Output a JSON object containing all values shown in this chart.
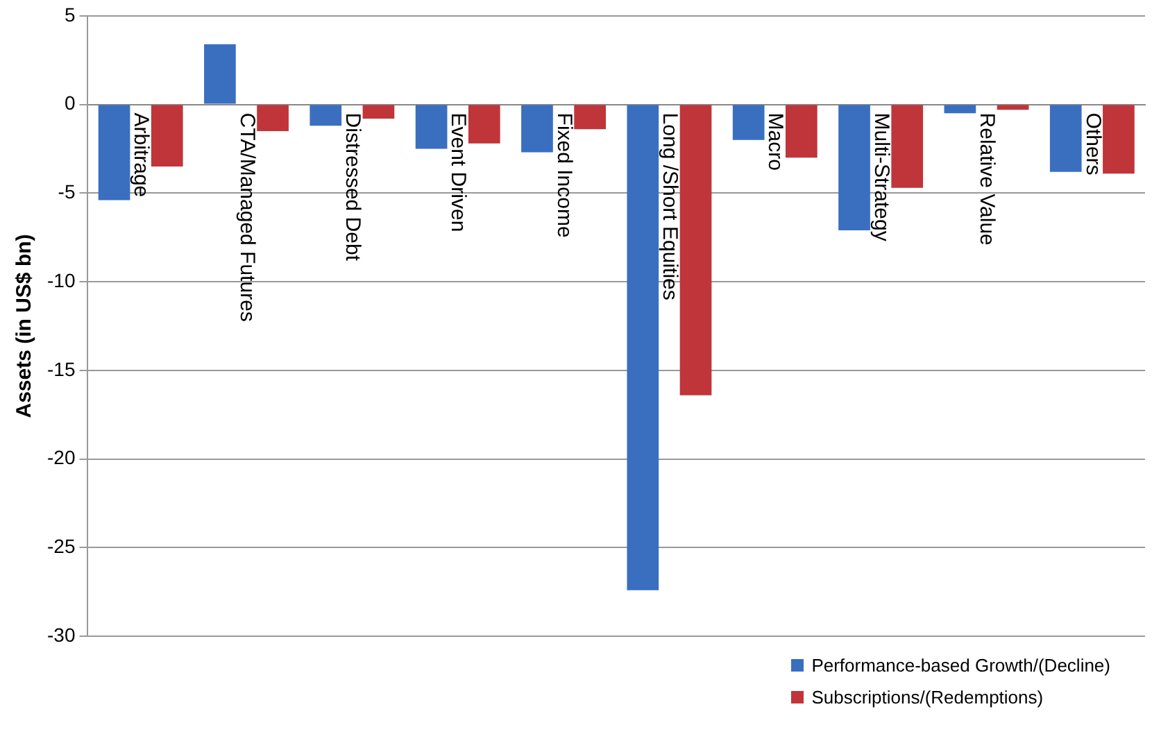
{
  "chart_data": {
    "type": "bar",
    "ylabel": "Assets (in US$ bn)",
    "categories": [
      "Arbitrage",
      "CTA/Managed Futures",
      "Distressed Debt",
      "Event Driven",
      "Fixed Income",
      "Long /Short Equities",
      "Macro",
      "Multi-Strategy",
      "Relative Value",
      "Others"
    ],
    "series": [
      {
        "name": "Performance-based Growth/(Decline)",
        "color": "#3a6fc0",
        "values": [
          -5.4,
          3.4,
          -1.2,
          -2.5,
          -2.7,
          -27.4,
          -2.0,
          -7.1,
          -0.5,
          -3.8
        ]
      },
      {
        "name": "Subscriptions/(Redemptions)",
        "color": "#c0353a",
        "values": [
          -3.5,
          -1.5,
          -0.8,
          -2.2,
          -1.4,
          -16.4,
          -3.0,
          -4.7,
          -0.3,
          -3.9
        ]
      }
    ],
    "ylim": [
      -30,
      5
    ],
    "yticks": [
      -30,
      -25,
      -20,
      -15,
      -10,
      -5,
      0,
      5
    ],
    "grid": "y",
    "legend": "bottom right"
  }
}
